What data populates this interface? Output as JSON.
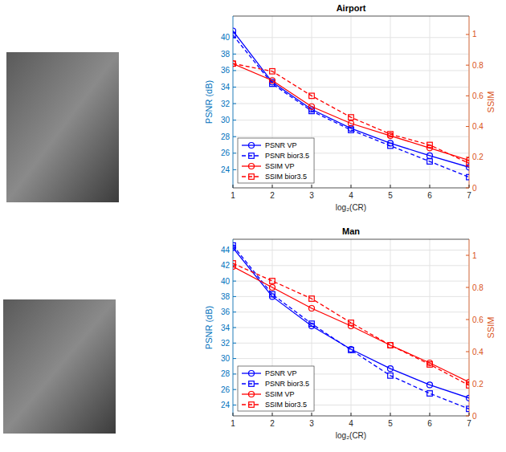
{
  "chart_data": [
    {
      "type": "line",
      "title": "Airport",
      "x_label": "log₂(CR)",
      "y_label": "PSNR (dB)",
      "y2_label": "SSIM",
      "x": [
        1,
        2,
        3,
        4,
        5,
        6,
        7
      ],
      "xlim": [
        1,
        7
      ],
      "xticks": [
        1,
        2,
        3,
        4,
        5,
        6,
        7
      ],
      "ylim": [
        21.8,
        42.6
      ],
      "yticks": [
        24,
        26,
        28,
        30,
        32,
        34,
        36,
        38,
        40
      ],
      "y2lim": [
        0,
        1.12
      ],
      "y2ticks": [
        0,
        0.2,
        0.4,
        0.6,
        0.8,
        1
      ],
      "grid": true,
      "legend": "lower left",
      "series": [
        {
          "name": "PSNR VP",
          "color": "#0000ff",
          "marker": "circle",
          "line_style": "solid",
          "values": [
            40.8,
            34.6,
            31.3,
            29.0,
            27.2,
            25.7,
            24.3
          ]
        },
        {
          "name": "PSNR bior3.5",
          "color": "#0000ff",
          "marker": "square",
          "line_style": "dashed",
          "values": [
            40.3,
            34.4,
            31.1,
            28.8,
            26.9,
            25.0,
            23.1
          ]
        },
        {
          "name": "SSIM VP",
          "color": "#ff0000",
          "marker": "circle",
          "line_style": "solid",
          "axis": "y2",
          "values": [
            0.81,
            0.7,
            0.53,
            0.42,
            0.34,
            0.26,
            0.18
          ]
        },
        {
          "name": "SSIM bior3.5",
          "color": "#ff0000",
          "marker": "square",
          "line_style": "dashed",
          "axis": "y2",
          "values": [
            0.81,
            0.76,
            0.6,
            0.46,
            0.35,
            0.28,
            0.16
          ]
        }
      ]
    },
    {
      "type": "line",
      "title": "Man",
      "x_label": "log₂(CR)",
      "y_label": "PSNR (dB)",
      "y2_label": "SSIM",
      "x": [
        1,
        2,
        3,
        4,
        5,
        6,
        7
      ],
      "xlim": [
        1,
        7
      ],
      "xticks": [
        1,
        2,
        3,
        4,
        5,
        6,
        7
      ],
      "ylim": [
        22.6,
        45.4
      ],
      "yticks": [
        24,
        26,
        28,
        30,
        32,
        34,
        36,
        38,
        40,
        42,
        44
      ],
      "y2lim": [
        0,
        1.1
      ],
      "y2ticks": [
        0,
        0.2,
        0.4,
        0.6,
        0.8,
        1
      ],
      "grid": true,
      "legend": "lower left",
      "series": [
        {
          "name": "PSNR VP",
          "color": "#0000ff",
          "marker": "circle",
          "line_style": "solid",
          "values": [
            44.3,
            38.0,
            34.2,
            31.2,
            28.7,
            26.6,
            24.9
          ]
        },
        {
          "name": "PSNR bior3.5",
          "color": "#0000ff",
          "marker": "square",
          "line_style": "dashed",
          "values": [
            44.6,
            38.3,
            34.5,
            31.1,
            27.8,
            25.5,
            23.5
          ]
        },
        {
          "name": "SSIM VP",
          "color": "#ff0000",
          "marker": "circle",
          "line_style": "solid",
          "axis": "y2",
          "values": [
            0.93,
            0.8,
            0.67,
            0.56,
            0.44,
            0.33,
            0.21
          ]
        },
        {
          "name": "SSIM bior3.5",
          "color": "#ff0000",
          "marker": "square",
          "line_style": "dashed",
          "axis": "y2",
          "values": [
            0.95,
            0.84,
            0.73,
            0.58,
            0.44,
            0.32,
            0.19
          ]
        }
      ]
    }
  ]
}
